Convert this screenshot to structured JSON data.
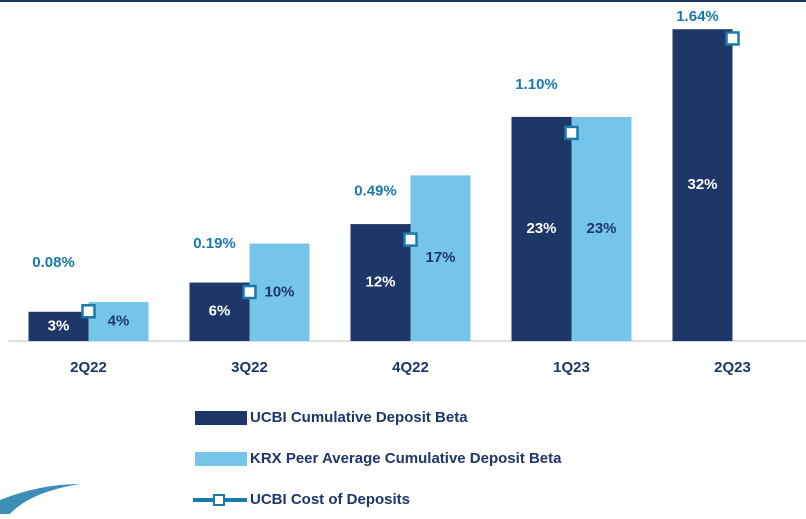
{
  "chart_data": {
    "type": "bar",
    "categories": [
      "2Q22",
      "3Q22",
      "4Q22",
      "1Q23",
      "2Q23"
    ],
    "series": [
      {
        "name": "UCBI Cumulative Deposit Beta",
        "color": "#1f3668",
        "values": [
          3,
          6,
          12,
          23,
          32
        ],
        "value_labels": [
          "3%",
          "6%",
          "12%",
          "23%",
          "32%"
        ]
      },
      {
        "name": "KRX Peer Average Cumulative Deposit Beta",
        "color": "#75c5ea",
        "values": [
          4,
          10,
          17,
          23,
          null
        ],
        "value_labels": [
          "4%",
          "10%",
          "17%",
          "23%",
          null
        ]
      },
      {
        "name": "UCBI Cost of Deposits",
        "color": "#1a7aaa",
        "type": "line",
        "axis": "y2",
        "values": [
          0.08,
          0.19,
          0.49,
          1.1,
          1.64
        ],
        "value_labels": [
          "0.08%",
          "0.19%",
          "0.49%",
          "1.10%",
          "1.64%"
        ]
      }
    ],
    "ylim": [
      0,
      35
    ],
    "y2lim": [
      -0.09,
      1.86
    ],
    "legend": "bottom"
  }
}
